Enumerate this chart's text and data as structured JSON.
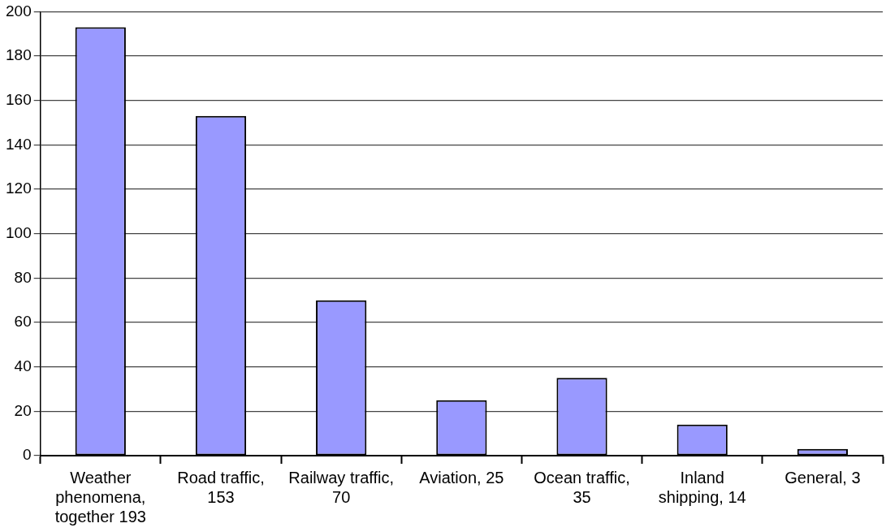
{
  "chart_data": {
    "type": "bar",
    "categories": [
      "Weather phenomena, together 193",
      "Road traffic, 153",
      "Railway traffic, 70",
      "Aviation, 25",
      "Ocean traffic, 35",
      "Inland shipping, 14",
      "General, 3"
    ],
    "values": [
      193,
      153,
      70,
      25,
      35,
      14,
      3
    ],
    "color": "#9999ff",
    "ylim": [
      0,
      200
    ],
    "yticks": [
      0,
      20,
      40,
      60,
      80,
      100,
      120,
      140,
      160,
      180,
      200
    ],
    "grid": "y",
    "legend": false
  }
}
